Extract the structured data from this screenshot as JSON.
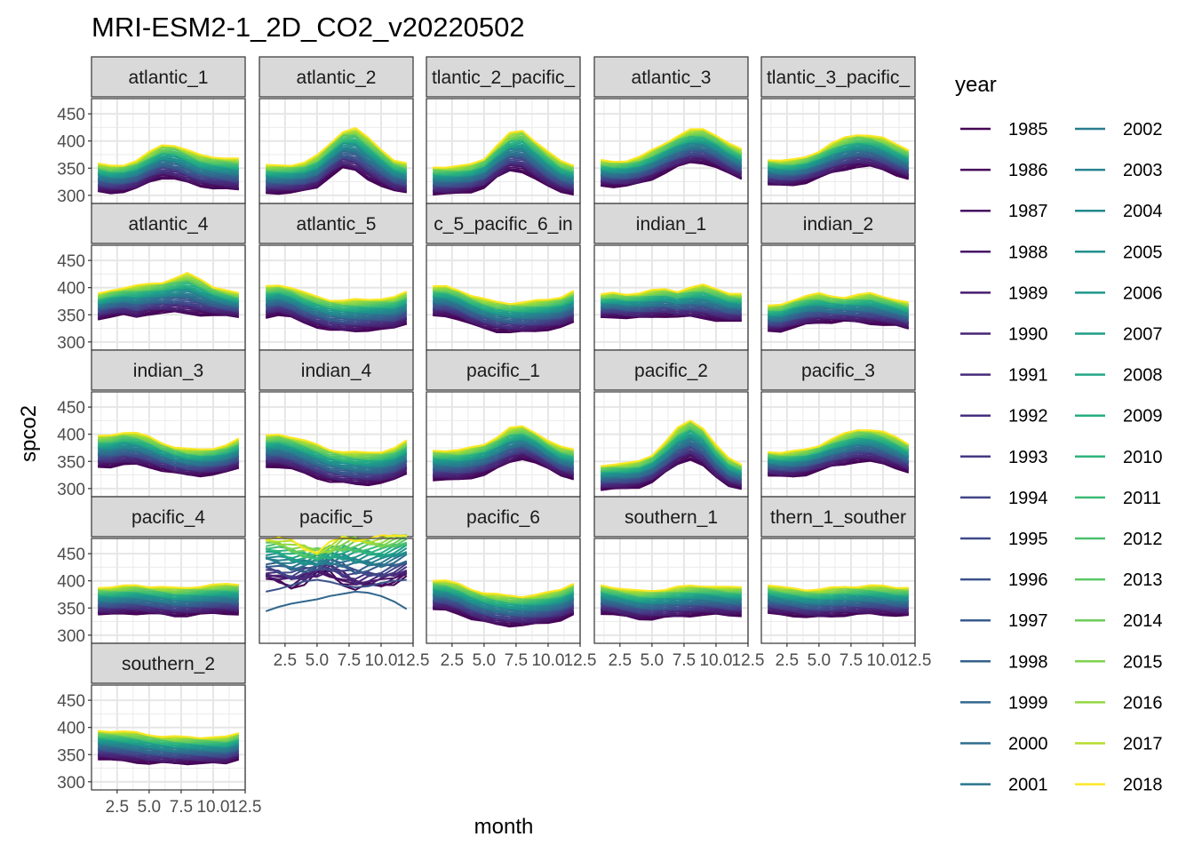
{
  "chart_data": {
    "type": "line",
    "title": "MRI-ESM2-1_2D_CO2_v20220502",
    "xlabel": "month",
    "ylabel": "spco2",
    "x": [
      1,
      2,
      3,
      4,
      5,
      6,
      7,
      8,
      9,
      10,
      11,
      12
    ],
    "x_ticks": [
      "2.5",
      "5.0",
      "7.5",
      "10.0",
      "12.5"
    ],
    "y_ticks": [
      "300",
      "350",
      "400",
      "450"
    ],
    "xlim": [
      0.5,
      12.5
    ],
    "ylim": [
      285,
      478
    ],
    "grid": true,
    "legend_title": "year",
    "legend_placement": "right",
    "years": [
      1985,
      1986,
      1987,
      1988,
      1989,
      1990,
      1991,
      1992,
      1993,
      1994,
      1995,
      1996,
      1997,
      1998,
      1999,
      2000,
      2001,
      2002,
      2003,
      2004,
      2005,
      2006,
      2007,
      2008,
      2009,
      2010,
      2011,
      2012,
      2013,
      2014,
      2015,
      2016,
      2017,
      2018
    ],
    "colors": [
      "#440154",
      "#46075a",
      "#470e61",
      "#481668",
      "#481c6e",
      "#482374",
      "#472a7a",
      "#46307e",
      "#443983",
      "#414487",
      "#3e4a89",
      "#3b528b",
      "#375b8d",
      "#34608d",
      "#31688e",
      "#2e6e8e",
      "#2b758e",
      "#287c8e",
      "#26828e",
      "#23898e",
      "#21908d",
      "#1f968b",
      "#1f9e89",
      "#22a785",
      "#26ad81",
      "#2fb47c",
      "#3bbb75",
      "#4ac16d",
      "#5ac864",
      "#6ccd5a",
      "#7fd34e",
      "#94d840",
      "#b5de2b",
      "#fde725"
    ],
    "panel_labels": {
      "atlantic_1": "atlantic_1",
      "atlantic_2": "atlantic_2",
      "atlantic_2_pacific_1": "tlantic_2_pacific_",
      "atlantic_3": "atlantic_3",
      "atlantic_3_pacific_2": "tlantic_3_pacific_",
      "atlantic_4": "atlantic_4",
      "atlantic_5": "atlantic_5",
      "atlantic_5_pacific_6_indian_1": "c_5_pacific_6_in",
      "indian_1": "indian_1",
      "indian_2": "indian_2",
      "indian_3": "indian_3",
      "indian_4": "indian_4",
      "pacific_1": "pacific_1",
      "pacific_2": "pacific_2",
      "pacific_3": "pacific_3",
      "pacific_4": "pacific_4",
      "pacific_5": "pacific_5",
      "pacific_6": "pacific_6",
      "southern_1": "southern_1",
      "southern_1_southern_2": "thern_1_souther",
      "southern_2": "southern_2"
    },
    "panels": [
      {
        "id": "atlantic_1",
        "first": [
          307,
          305,
          306,
          312,
          325,
          333,
          330,
          323,
          317,
          314,
          312,
          310
        ],
        "last": [
          358,
          354,
          356,
          364,
          378,
          392,
          393,
          383,
          373,
          370,
          369,
          367
        ]
      },
      {
        "id": "atlantic_2",
        "first": [
          304,
          304,
          305,
          308,
          315,
          335,
          350,
          345,
          330,
          318,
          308,
          305
        ],
        "last": [
          355,
          355,
          356,
          360,
          372,
          395,
          418,
          423,
          405,
          385,
          365,
          358
        ]
      },
      {
        "id": "atlantic_2_pacific_1",
        "first": [
          302,
          302,
          304,
          307,
          314,
          332,
          346,
          344,
          330,
          316,
          307,
          302
        ],
        "last": [
          352,
          352,
          353,
          357,
          368,
          392,
          413,
          419,
          400,
          380,
          362,
          355
        ]
      },
      {
        "id": "atlantic_3",
        "first": [
          318,
          316,
          317,
          322,
          330,
          342,
          352,
          360,
          360,
          352,
          340,
          330
        ],
        "last": [
          364,
          362,
          364,
          370,
          382,
          396,
          410,
          420,
          421,
          411,
          396,
          384
        ]
      },
      {
        "id": "atlantic_3_pacific_2",
        "first": [
          320,
          318,
          319,
          324,
          332,
          341,
          348,
          353,
          353,
          347,
          338,
          330
        ],
        "last": [
          366,
          364,
          365,
          371,
          382,
          395,
          405,
          412,
          411,
          405,
          394,
          384
        ]
      },
      {
        "id": "atlantic_4",
        "first": [
          342,
          347,
          350,
          345,
          352,
          354,
          354,
          352,
          350,
          349,
          348,
          346
        ],
        "last": [
          388,
          395,
          400,
          403,
          406,
          410,
          418,
          425,
          415,
          402,
          395,
          389
        ]
      },
      {
        "id": "atlantic_5",
        "first": [
          345,
          350,
          345,
          335,
          328,
          322,
          320,
          320,
          322,
          323,
          325,
          334
        ],
        "last": [
          402,
          405,
          400,
          390,
          383,
          378,
          376,
          377,
          378,
          380,
          382,
          392
        ]
      },
      {
        "id": "atlantic_5_pacific_6_indian_1",
        "first": [
          348,
          348,
          342,
          332,
          325,
          320,
          318,
          318,
          320,
          323,
          327,
          336
        ],
        "last": [
          402,
          402,
          396,
          386,
          378,
          373,
          372,
          373,
          375,
          378,
          383,
          394
        ]
      },
      {
        "id": "indian_1",
        "first": [
          345,
          346,
          344,
          344,
          346,
          348,
          346,
          346,
          344,
          340,
          338,
          338
        ],
        "last": [
          387,
          390,
          388,
          390,
          394,
          397,
          394,
          400,
          404,
          398,
          390,
          388
        ]
      },
      {
        "id": "indian_2",
        "first": [
          320,
          320,
          326,
          332,
          336,
          337,
          338,
          336,
          334,
          332,
          330,
          324
        ],
        "last": [
          366,
          368,
          378,
          385,
          388,
          384,
          383,
          386,
          389,
          384,
          378,
          372
        ]
      },
      {
        "id": "indian_3",
        "first": [
          340,
          340,
          344,
          344,
          340,
          334,
          328,
          325,
          324,
          326,
          330,
          338
        ],
        "last": [
          396,
          398,
          404,
          402,
          394,
          384,
          377,
          372,
          371,
          374,
          380,
          391
        ]
      },
      {
        "id": "indian_4",
        "first": [
          340,
          340,
          336,
          328,
          320,
          313,
          310,
          308,
          308,
          310,
          316,
          328
        ],
        "last": [
          397,
          400,
          395,
          388,
          380,
          372,
          368,
          366,
          366,
          368,
          374,
          388
        ]
      },
      {
        "id": "pacific_1",
        "first": [
          316,
          316,
          316,
          320,
          326,
          336,
          348,
          356,
          348,
          336,
          324,
          318
        ],
        "last": [
          370,
          370,
          370,
          375,
          382,
          395,
          410,
          414,
          404,
          388,
          376,
          372
        ]
      },
      {
        "id": "pacific_2",
        "first": [
          298,
          299,
          300,
          303,
          312,
          328,
          345,
          355,
          342,
          320,
          305,
          300
        ],
        "last": [
          342,
          345,
          346,
          350,
          362,
          385,
          410,
          425,
          412,
          380,
          355,
          344
        ]
      },
      {
        "id": "pacific_3",
        "first": [
          324,
          322,
          322,
          326,
          333,
          340,
          345,
          350,
          350,
          345,
          338,
          330
        ],
        "last": [
          368,
          366,
          368,
          372,
          380,
          391,
          400,
          408,
          409,
          404,
          394,
          382
        ]
      },
      {
        "id": "pacific_4",
        "first": [
          338,
          338,
          340,
          340,
          339,
          338,
          336,
          336,
          338,
          340,
          340,
          338
        ],
        "last": [
          388,
          388,
          390,
          392,
          390,
          388,
          386,
          388,
          390,
          392,
          394,
          394
        ]
      },
      {
        "id": "pacific_5",
        "first": [
          402,
          396,
          390,
          398,
          410,
          413,
          400,
          386,
          388,
          392,
          398,
          408
        ],
        "last": [
          480,
          478,
          470,
          462,
          458,
          465,
          475,
          480,
          480,
          477,
          482,
          488
        ]
      },
      {
        "id": "pacific_6",
        "first": [
          347,
          346,
          340,
          330,
          324,
          320,
          318,
          318,
          320,
          323,
          328,
          338
        ],
        "last": [
          401,
          400,
          394,
          385,
          378,
          374,
          372,
          372,
          374,
          378,
          384,
          396
        ]
      },
      {
        "id": "southern_1",
        "first": [
          340,
          338,
          334,
          330,
          330,
          332,
          334,
          336,
          338,
          338,
          336,
          336
        ],
        "last": [
          392,
          388,
          384,
          381,
          382,
          385,
          388,
          390,
          391,
          390,
          388,
          388
        ]
      },
      {
        "id": "southern_1_southern_2",
        "first": [
          340,
          338,
          336,
          333,
          333,
          335,
          337,
          338,
          339,
          338,
          336,
          336
        ],
        "last": [
          392,
          388,
          386,
          384,
          384,
          386,
          389,
          390,
          391,
          390,
          388,
          388
        ]
      },
      {
        "id": "southern_2",
        "first": [
          342,
          340,
          338,
          336,
          334,
          334,
          334,
          334,
          334,
          334,
          334,
          342
        ],
        "last": [
          394,
          393,
          392,
          390,
          387,
          384,
          382,
          382,
          382,
          382,
          382,
          390
        ]
      }
    ],
    "pacific_5_irregular": {
      "1988": [
        412,
        407,
        405,
        412,
        420,
        410,
        400,
        395,
        398,
        403,
        405,
        412
      ],
      "1996": [
        380,
        385,
        392,
        399,
        402,
        398,
        392,
        388,
        390,
        396,
        400,
        402
      ],
      "1999": [
        344,
        352,
        358,
        362,
        366,
        372,
        376,
        380,
        378,
        372,
        362,
        348
      ]
    }
  }
}
